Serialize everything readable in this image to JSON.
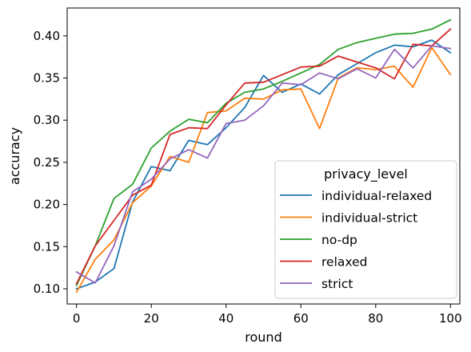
{
  "chart_data": {
    "type": "line",
    "xlabel": "round",
    "ylabel": "accuracy",
    "xlim": [
      -2.5,
      102.5
    ],
    "ylim": [
      0.082,
      0.433
    ],
    "xticks": [
      0,
      20,
      40,
      60,
      80,
      100
    ],
    "yticks": [
      0.1,
      0.15,
      0.2,
      0.25,
      0.3,
      0.35,
      0.4
    ],
    "grid": false,
    "legend": {
      "title": "privacy_level",
      "placement": "lower-right"
    },
    "x": [
      0,
      5,
      10,
      15,
      20,
      25,
      30,
      35,
      40,
      45,
      50,
      55,
      60,
      65,
      70,
      75,
      80,
      85,
      90,
      95,
      100
    ],
    "series": [
      {
        "name": "individual-relaxed",
        "color": "#1f77b4",
        "values": [
          0.1,
          0.108,
          0.124,
          0.203,
          0.245,
          0.24,
          0.276,
          0.271,
          0.291,
          0.315,
          0.353,
          0.333,
          0.343,
          0.331,
          0.354,
          0.367,
          0.38,
          0.389,
          0.387,
          0.395,
          0.38
        ]
      },
      {
        "name": "individual-strict",
        "color": "#ff7f0e",
        "values": [
          0.096,
          0.135,
          0.158,
          0.202,
          0.222,
          0.257,
          0.25,
          0.309,
          0.311,
          0.326,
          0.325,
          0.336,
          0.337,
          0.29,
          0.35,
          0.362,
          0.36,
          0.364,
          0.339,
          0.386,
          0.354
        ]
      },
      {
        "name": "no-dp",
        "color": "#2ca02c",
        "values": [
          0.104,
          0.151,
          0.207,
          0.224,
          0.267,
          0.287,
          0.301,
          0.297,
          0.32,
          0.333,
          0.337,
          0.346,
          0.356,
          0.366,
          0.384,
          0.392,
          0.397,
          0.402,
          0.403,
          0.408,
          0.419
        ]
      },
      {
        "name": "relaxed",
        "color": "#d62728",
        "values": [
          0.106,
          0.151,
          0.181,
          0.211,
          0.223,
          0.283,
          0.291,
          0.29,
          0.318,
          0.344,
          0.345,
          0.354,
          0.363,
          0.364,
          0.376,
          0.369,
          0.362,
          0.349,
          0.39,
          0.388,
          0.408
        ]
      },
      {
        "name": "strict",
        "color": "#9467bd",
        "values": [
          0.12,
          0.107,
          0.151,
          0.215,
          0.23,
          0.254,
          0.265,
          0.255,
          0.296,
          0.3,
          0.317,
          0.344,
          0.342,
          0.356,
          0.349,
          0.361,
          0.35,
          0.384,
          0.362,
          0.388,
          0.385
        ]
      }
    ]
  }
}
